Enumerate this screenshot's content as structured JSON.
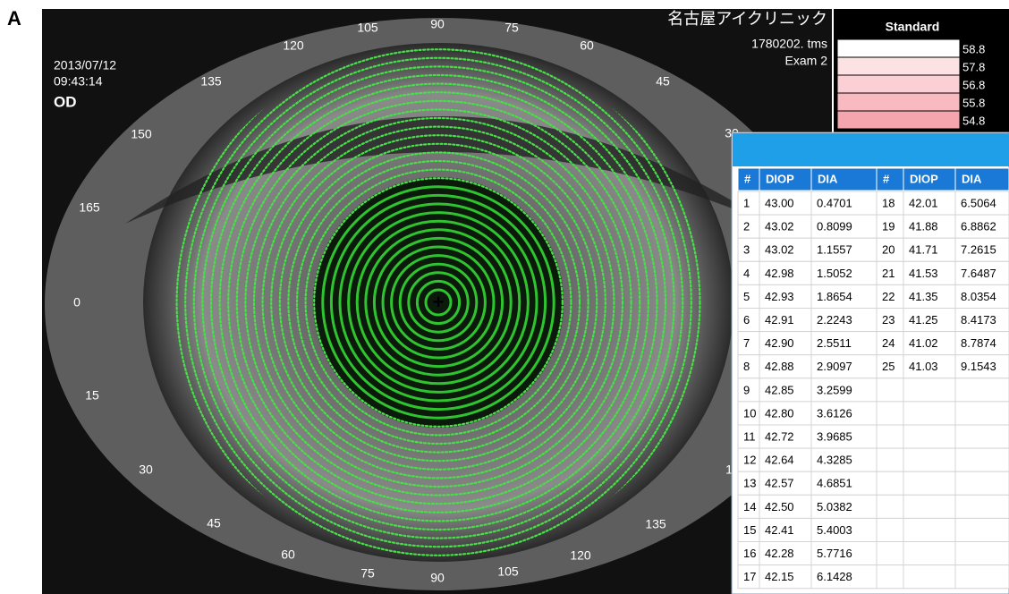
{
  "panel_label": "A",
  "header": {
    "clinic": "名古屋アイクリニック",
    "file": "1780202. tms",
    "exam": "Exam 2",
    "date": "2013/07/12",
    "time": "09:43:14",
    "eye": "OD"
  },
  "angle_labels": [
    "105",
    "90",
    "75",
    "120",
    "60",
    "135",
    "45",
    "150",
    "30",
    "165",
    "0",
    "15",
    "30",
    "45",
    "60",
    "75",
    "90",
    "105",
    "120",
    "135",
    "1"
  ],
  "scale": {
    "title": "Standard",
    "levels": [
      "58.8",
      "57.8",
      "56.8",
      "55.8",
      "54.8"
    ]
  },
  "table": {
    "headers": [
      "#",
      "DIOP",
      "DIA",
      "#",
      "DIOP",
      "DIA"
    ],
    "rows": [
      [
        "1",
        "43.00",
        "0.4701",
        "18",
        "42.01",
        "6.5064"
      ],
      [
        "2",
        "43.02",
        "0.8099",
        "19",
        "41.88",
        "6.8862"
      ],
      [
        "3",
        "43.02",
        "1.1557",
        "20",
        "41.71",
        "7.2615"
      ],
      [
        "4",
        "42.98",
        "1.5052",
        "21",
        "41.53",
        "7.6487"
      ],
      [
        "5",
        "42.93",
        "1.8654",
        "22",
        "41.35",
        "8.0354"
      ],
      [
        "6",
        "42.91",
        "2.2243",
        "23",
        "41.25",
        "8.4173"
      ],
      [
        "7",
        "42.90",
        "2.5511",
        "24",
        "41.02",
        "8.7874"
      ],
      [
        "8",
        "42.88",
        "2.9097",
        "25",
        "41.03",
        "9.1543"
      ],
      [
        "9",
        "42.85",
        "3.2599"
      ],
      [
        "10",
        "42.80",
        "3.6126"
      ],
      [
        "11",
        "42.72",
        "3.9685"
      ],
      [
        "12",
        "42.64",
        "4.3285"
      ],
      [
        "13",
        "42.57",
        "4.6851"
      ],
      [
        "14",
        "42.50",
        "5.0382"
      ],
      [
        "15",
        "42.41",
        "5.4003"
      ],
      [
        "16",
        "42.28",
        "5.7716"
      ],
      [
        "17",
        "42.15",
        "6.1428"
      ]
    ]
  }
}
